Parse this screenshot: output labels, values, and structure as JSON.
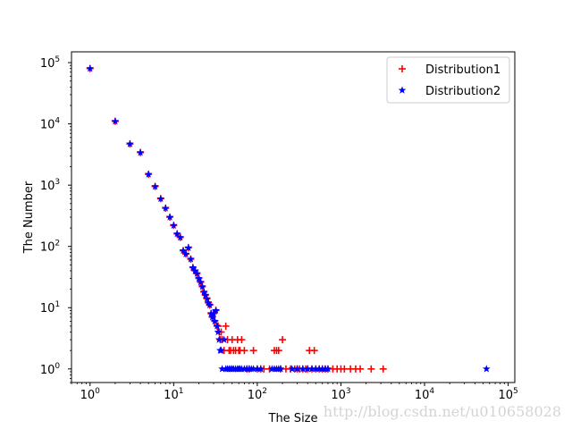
{
  "chart_data": {
    "type": "scatter",
    "xlabel": "The Size",
    "ylabel": "The Number",
    "xscale": "log",
    "yscale": "log",
    "xlim": [
      0.6,
      120000
    ],
    "ylim": [
      0.6,
      150000
    ],
    "x_ticks": [
      {
        "value": 1,
        "base": "10",
        "exp": "0"
      },
      {
        "value": 10,
        "base": "10",
        "exp": "1"
      },
      {
        "value": 100,
        "base": "10",
        "exp": "2"
      },
      {
        "value": 1000,
        "base": "10",
        "exp": "3"
      },
      {
        "value": 10000,
        "base": "10",
        "exp": "4"
      },
      {
        "value": 100000,
        "base": "10",
        "exp": "5"
      }
    ],
    "y_ticks": [
      {
        "value": 1,
        "base": "10",
        "exp": "0"
      },
      {
        "value": 10,
        "base": "10",
        "exp": "1"
      },
      {
        "value": 100,
        "base": "10",
        "exp": "2"
      },
      {
        "value": 1000,
        "base": "10",
        "exp": "3"
      },
      {
        "value": 10000,
        "base": "10",
        "exp": "4"
      },
      {
        "value": 100000,
        "base": "10",
        "exp": "5"
      }
    ],
    "grid": false,
    "legend_position": "top-right",
    "series": [
      {
        "name": "Distribution1",
        "marker": "plus",
        "color": "#ff0000",
        "points": [
          [
            1,
            80000
          ],
          [
            2,
            11000
          ],
          [
            3,
            4700
          ],
          [
            4,
            3400
          ],
          [
            5,
            1500
          ],
          [
            6,
            950
          ],
          [
            7,
            600
          ],
          [
            8,
            420
          ],
          [
            9,
            300
          ],
          [
            10,
            220
          ],
          [
            11,
            160
          ],
          [
            12,
            140
          ],
          [
            13,
            85
          ],
          [
            14,
            75
          ],
          [
            15,
            95
          ],
          [
            16,
            62
          ],
          [
            17,
            45
          ],
          [
            18,
            40
          ],
          [
            19,
            36
          ],
          [
            20,
            30
          ],
          [
            21,
            26
          ],
          [
            22,
            22
          ],
          [
            23,
            18
          ],
          [
            24,
            16
          ],
          [
            25,
            14
          ],
          [
            26,
            12
          ],
          [
            27,
            11
          ],
          [
            28,
            8
          ],
          [
            29,
            7
          ],
          [
            30,
            8
          ],
          [
            31,
            6
          ],
          [
            32,
            9
          ],
          [
            33,
            5
          ],
          [
            34,
            5
          ],
          [
            35,
            4
          ],
          [
            36,
            3
          ],
          [
            37,
            4
          ],
          [
            38,
            3
          ],
          [
            40,
            2
          ],
          [
            42,
            5
          ],
          [
            44,
            3
          ],
          [
            46,
            2
          ],
          [
            48,
            2
          ],
          [
            50,
            3
          ],
          [
            52,
            2
          ],
          [
            55,
            2
          ],
          [
            58,
            3
          ],
          [
            60,
            2
          ],
          [
            62,
            2
          ],
          [
            65,
            3
          ],
          [
            70,
            2
          ],
          [
            75,
            1
          ],
          [
            80,
            1
          ],
          [
            90,
            2
          ],
          [
            100,
            1
          ],
          [
            110,
            1
          ],
          [
            120,
            1
          ],
          [
            140,
            1
          ],
          [
            160,
            2
          ],
          [
            170,
            2
          ],
          [
            180,
            2
          ],
          [
            190,
            1
          ],
          [
            200,
            3
          ],
          [
            220,
            1
          ],
          [
            250,
            1
          ],
          [
            280,
            1
          ],
          [
            300,
            1
          ],
          [
            320,
            1
          ],
          [
            350,
            1
          ],
          [
            380,
            1
          ],
          [
            400,
            1
          ],
          [
            420,
            2
          ],
          [
            450,
            1
          ],
          [
            480,
            2
          ],
          [
            500,
            1
          ],
          [
            550,
            1
          ],
          [
            600,
            1
          ],
          [
            650,
            1
          ],
          [
            700,
            1
          ],
          [
            800,
            1
          ],
          [
            900,
            1
          ],
          [
            1000,
            1
          ],
          [
            1100,
            1
          ],
          [
            1300,
            1
          ],
          [
            1500,
            1
          ],
          [
            1700,
            1
          ],
          [
            2300,
            1
          ],
          [
            3200,
            1
          ]
        ]
      },
      {
        "name": "Distribution2",
        "marker": "star",
        "color": "#0000ff",
        "points": [
          [
            1,
            80000
          ],
          [
            2,
            11000
          ],
          [
            3,
            4700
          ],
          [
            4,
            3400
          ],
          [
            5,
            1500
          ],
          [
            6,
            950
          ],
          [
            7,
            600
          ],
          [
            8,
            420
          ],
          [
            9,
            300
          ],
          [
            10,
            220
          ],
          [
            11,
            160
          ],
          [
            12,
            140
          ],
          [
            13,
            85
          ],
          [
            14,
            75
          ],
          [
            15,
            95
          ],
          [
            16,
            62
          ],
          [
            17,
            45
          ],
          [
            18,
            40
          ],
          [
            19,
            36
          ],
          [
            20,
            30
          ],
          [
            21,
            26
          ],
          [
            22,
            22
          ],
          [
            23,
            18
          ],
          [
            24,
            16
          ],
          [
            25,
            14
          ],
          [
            26,
            12
          ],
          [
            27,
            11
          ],
          [
            28,
            8
          ],
          [
            29,
            7
          ],
          [
            30,
            8
          ],
          [
            31,
            6
          ],
          [
            32,
            9
          ],
          [
            33,
            5
          ],
          [
            34,
            4
          ],
          [
            35,
            3
          ],
          [
            36,
            2
          ],
          [
            37,
            2
          ],
          [
            38,
            1
          ],
          [
            40,
            3
          ],
          [
            42,
            1
          ],
          [
            44,
            1
          ],
          [
            46,
            1
          ],
          [
            48,
            1
          ],
          [
            50,
            1
          ],
          [
            52,
            1
          ],
          [
            55,
            1
          ],
          [
            58,
            1
          ],
          [
            60,
            1
          ],
          [
            62,
            1
          ],
          [
            65,
            1
          ],
          [
            70,
            1
          ],
          [
            75,
            1
          ],
          [
            80,
            1
          ],
          [
            85,
            1
          ],
          [
            90,
            1
          ],
          [
            100,
            1
          ],
          [
            110,
            1
          ],
          [
            150,
            1
          ],
          [
            160,
            1
          ],
          [
            170,
            1
          ],
          [
            180,
            1
          ],
          [
            190,
            1
          ],
          [
            260,
            1
          ],
          [
            300,
            1
          ],
          [
            350,
            1
          ],
          [
            400,
            1
          ],
          [
            450,
            1
          ],
          [
            500,
            1
          ],
          [
            550,
            1
          ],
          [
            600,
            1
          ],
          [
            650,
            1
          ],
          [
            700,
            1
          ],
          [
            55000,
            1
          ]
        ]
      }
    ]
  },
  "watermark": "http://blog.csdn.net/u010658028"
}
